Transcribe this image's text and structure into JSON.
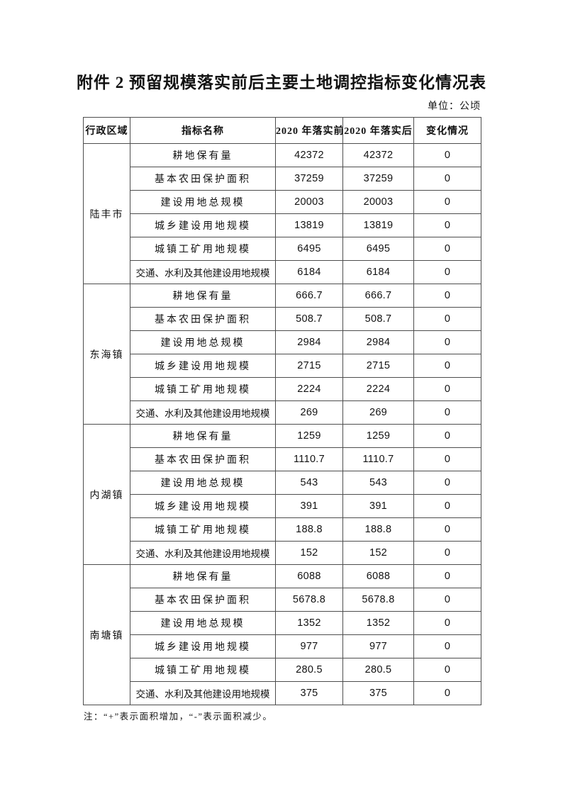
{
  "page": {
    "title": "附件 2 预留规模落实前后主要土地调控指标变化情况表",
    "unit_label": "单位：公顷",
    "note": "注：“+”表示面积增加，“-”表示面积减少。"
  },
  "table": {
    "headers": [
      "行政区域",
      "指标名称",
      "2020 年落实前",
      "2020 年落实后",
      "变化情况"
    ],
    "groups": [
      {
        "region": "陆丰市",
        "rows": [
          [
            "耕地保有量",
            "42372",
            "42372",
            "0"
          ],
          [
            "基本农田保护面积",
            "37259",
            "37259",
            "0"
          ],
          [
            "建设用地总规模",
            "20003",
            "20003",
            "0"
          ],
          [
            "城乡建设用地规模",
            "13819",
            "13819",
            "0"
          ],
          [
            "城镇工矿用地规模",
            "6495",
            "6495",
            "0"
          ],
          [
            "交通、水利及其他建设用地规模",
            "6184",
            "6184",
            "0"
          ]
        ]
      },
      {
        "region": "东海镇",
        "rows": [
          [
            "耕地保有量",
            "666.7",
            "666.7",
            "0"
          ],
          [
            "基本农田保护面积",
            "508.7",
            "508.7",
            "0"
          ],
          [
            "建设用地总规模",
            "2984",
            "2984",
            "0"
          ],
          [
            "城乡建设用地规模",
            "2715",
            "2715",
            "0"
          ],
          [
            "城镇工矿用地规模",
            "2224",
            "2224",
            "0"
          ],
          [
            "交通、水利及其他建设用地规模",
            "269",
            "269",
            "0"
          ]
        ]
      },
      {
        "region": "内湖镇",
        "rows": [
          [
            "耕地保有量",
            "1259",
            "1259",
            "0"
          ],
          [
            "基本农田保护面积",
            "1110.7",
            "1110.7",
            "0"
          ],
          [
            "建设用地总规模",
            "543",
            "543",
            "0"
          ],
          [
            "城乡建设用地规模",
            "391",
            "391",
            "0"
          ],
          [
            "城镇工矿用地规模",
            "188.8",
            "188.8",
            "0"
          ],
          [
            "交通、水利及其他建设用地规模",
            "152",
            "152",
            "0"
          ]
        ]
      },
      {
        "region": "南塘镇",
        "rows": [
          [
            "耕地保有量",
            "6088",
            "6088",
            "0"
          ],
          [
            "基本农田保护面积",
            "5678.8",
            "5678.8",
            "0"
          ],
          [
            "建设用地总规模",
            "1352",
            "1352",
            "0"
          ],
          [
            "城乡建设用地规模",
            "977",
            "977",
            "0"
          ],
          [
            "城镇工矿用地规模",
            "280.5",
            "280.5",
            "0"
          ],
          [
            "交通、水利及其他建设用地规模",
            "375",
            "375",
            "0"
          ]
        ]
      }
    ]
  }
}
